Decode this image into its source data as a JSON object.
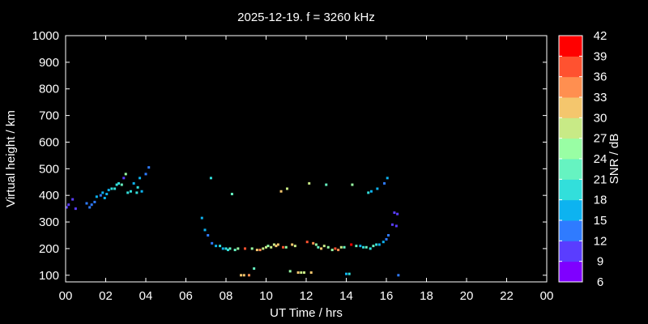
{
  "chart_data": {
    "type": "scatter",
    "title": "2025-12-19. f = 3260 kHz",
    "xlabel": "UT Time / hrs",
    "ylabel": "Virtual height / km",
    "colorbar_label": "SNR / dB",
    "xlim": [
      0,
      24
    ],
    "ylim": [
      75,
      1000
    ],
    "xticks": [
      "00",
      "02",
      "04",
      "06",
      "08",
      "10",
      "12",
      "14",
      "16",
      "18",
      "20",
      "22",
      "00"
    ],
    "yticks": [
      100,
      200,
      300,
      400,
      500,
      600,
      700,
      800,
      900,
      1000
    ],
    "snr_range": [
      6,
      42
    ],
    "snr_ticks": [
      6,
      9,
      12,
      15,
      18,
      21,
      24,
      27,
      30,
      33,
      36,
      39,
      42
    ],
    "background": "#000000",
    "foreground": "#ffffff",
    "colormap": [
      "#7f00ff",
      "#5a3dff",
      "#2f7bff",
      "#0db3f0",
      "#32dfdb",
      "#66f3c1",
      "#99fea4",
      "#c8ea86",
      "#f4c66d",
      "#ff8f50",
      "#ff5230",
      "#ff0000"
    ],
    "points": [
      {
        "x": 0.05,
        "y": 355,
        "snr": 10
      },
      {
        "x": 0.15,
        "y": 365,
        "snr": 10
      },
      {
        "x": 0.35,
        "y": 385,
        "snr": 10
      },
      {
        "x": 0.5,
        "y": 350,
        "snr": 10
      },
      {
        "x": 1.05,
        "y": 370,
        "snr": 13
      },
      {
        "x": 1.2,
        "y": 355,
        "snr": 14
      },
      {
        "x": 1.3,
        "y": 365,
        "snr": 13
      },
      {
        "x": 1.45,
        "y": 375,
        "snr": 13
      },
      {
        "x": 1.55,
        "y": 395,
        "snr": 15
      },
      {
        "x": 1.75,
        "y": 400,
        "snr": 14
      },
      {
        "x": 1.85,
        "y": 410,
        "snr": 16
      },
      {
        "x": 1.95,
        "y": 390,
        "snr": 17
      },
      {
        "x": 2.05,
        "y": 405,
        "snr": 16
      },
      {
        "x": 2.15,
        "y": 420,
        "snr": 17
      },
      {
        "x": 2.3,
        "y": 425,
        "snr": 18
      },
      {
        "x": 2.45,
        "y": 425,
        "snr": 20
      },
      {
        "x": 2.55,
        "y": 440,
        "snr": 19
      },
      {
        "x": 2.65,
        "y": 445,
        "snr": 18
      },
      {
        "x": 2.8,
        "y": 440,
        "snr": 21
      },
      {
        "x": 2.9,
        "y": 465,
        "snr": 11
      },
      {
        "x": 3.0,
        "y": 480,
        "snr": 24
      },
      {
        "x": 3.1,
        "y": 410,
        "snr": 19
      },
      {
        "x": 3.25,
        "y": 415,
        "snr": 20
      },
      {
        "x": 3.4,
        "y": 445,
        "snr": 17
      },
      {
        "x": 3.55,
        "y": 410,
        "snr": 18
      },
      {
        "x": 3.6,
        "y": 430,
        "snr": 19
      },
      {
        "x": 3.7,
        "y": 465,
        "snr": 15
      },
      {
        "x": 3.8,
        "y": 415,
        "snr": 17
      },
      {
        "x": 4.0,
        "y": 480,
        "snr": 13
      },
      {
        "x": 4.15,
        "y": 505,
        "snr": 14
      },
      {
        "x": 6.8,
        "y": 315,
        "snr": 16
      },
      {
        "x": 6.95,
        "y": 270,
        "snr": 15
      },
      {
        "x": 7.1,
        "y": 250,
        "snr": 14
      },
      {
        "x": 7.25,
        "y": 465,
        "snr": 18
      },
      {
        "x": 7.3,
        "y": 220,
        "snr": 14
      },
      {
        "x": 7.5,
        "y": 210,
        "snr": 15
      },
      {
        "x": 7.7,
        "y": 210,
        "snr": 18
      },
      {
        "x": 7.85,
        "y": 200,
        "snr": 17
      },
      {
        "x": 8.0,
        "y": 200,
        "snr": 18
      },
      {
        "x": 8.1,
        "y": 195,
        "snr": 20
      },
      {
        "x": 8.2,
        "y": 200,
        "snr": 21
      },
      {
        "x": 8.3,
        "y": 405,
        "snr": 22
      },
      {
        "x": 8.45,
        "y": 195,
        "snr": 23
      },
      {
        "x": 8.6,
        "y": 200,
        "snr": 24
      },
      {
        "x": 8.75,
        "y": 100,
        "snr": 31
      },
      {
        "x": 8.9,
        "y": 100,
        "snr": 30
      },
      {
        "x": 8.95,
        "y": 200,
        "snr": 38
      },
      {
        "x": 9.15,
        "y": 100,
        "snr": 33
      },
      {
        "x": 9.3,
        "y": 200,
        "snr": 24
      },
      {
        "x": 9.4,
        "y": 125,
        "snr": 22
      },
      {
        "x": 9.55,
        "y": 195,
        "snr": 30
      },
      {
        "x": 9.7,
        "y": 195,
        "snr": 33
      },
      {
        "x": 9.85,
        "y": 200,
        "snr": 29
      },
      {
        "x": 10.0,
        "y": 205,
        "snr": 27
      },
      {
        "x": 10.1,
        "y": 210,
        "snr": 26
      },
      {
        "x": 10.25,
        "y": 205,
        "snr": 28
      },
      {
        "x": 10.4,
        "y": 215,
        "snr": 29
      },
      {
        "x": 10.5,
        "y": 210,
        "snr": 32
      },
      {
        "x": 10.6,
        "y": 215,
        "snr": 30
      },
      {
        "x": 10.75,
        "y": 415,
        "snr": 31
      },
      {
        "x": 10.85,
        "y": 205,
        "snr": 37
      },
      {
        "x": 11.0,
        "y": 205,
        "snr": 26
      },
      {
        "x": 11.05,
        "y": 425,
        "snr": 29
      },
      {
        "x": 11.2,
        "y": 115,
        "snr": 26
      },
      {
        "x": 11.3,
        "y": 215,
        "snr": 32
      },
      {
        "x": 11.45,
        "y": 210,
        "snr": 29
      },
      {
        "x": 11.6,
        "y": 110,
        "snr": 30
      },
      {
        "x": 11.75,
        "y": 110,
        "snr": 28
      },
      {
        "x": 11.9,
        "y": 110,
        "snr": 29
      },
      {
        "x": 12.05,
        "y": 225,
        "snr": 36
      },
      {
        "x": 12.15,
        "y": 445,
        "snr": 27
      },
      {
        "x": 12.25,
        "y": 110,
        "snr": 30
      },
      {
        "x": 12.35,
        "y": 220,
        "snr": 33
      },
      {
        "x": 12.5,
        "y": 215,
        "snr": 24
      },
      {
        "x": 12.6,
        "y": 205,
        "snr": 22
      },
      {
        "x": 12.75,
        "y": 200,
        "snr": 30
      },
      {
        "x": 12.9,
        "y": 210,
        "snr": 27
      },
      {
        "x": 13.0,
        "y": 440,
        "snr": 22
      },
      {
        "x": 13.1,
        "y": 205,
        "snr": 26
      },
      {
        "x": 13.3,
        "y": 195,
        "snr": 24
      },
      {
        "x": 13.45,
        "y": 200,
        "snr": 37
      },
      {
        "x": 13.6,
        "y": 195,
        "snr": 33
      },
      {
        "x": 13.75,
        "y": 205,
        "snr": 28
      },
      {
        "x": 13.9,
        "y": 205,
        "snr": 21
      },
      {
        "x": 14.0,
        "y": 105,
        "snr": 15
      },
      {
        "x": 14.15,
        "y": 105,
        "snr": 18
      },
      {
        "x": 14.25,
        "y": 215,
        "snr": 39
      },
      {
        "x": 14.3,
        "y": 440,
        "snr": 25
      },
      {
        "x": 14.5,
        "y": 210,
        "snr": 22
      },
      {
        "x": 14.7,
        "y": 210,
        "snr": 17
      },
      {
        "x": 14.85,
        "y": 205,
        "snr": 19
      },
      {
        "x": 15.0,
        "y": 205,
        "snr": 21
      },
      {
        "x": 15.1,
        "y": 410,
        "snr": 19
      },
      {
        "x": 15.25,
        "y": 415,
        "snr": 16
      },
      {
        "x": 15.2,
        "y": 200,
        "snr": 20
      },
      {
        "x": 15.35,
        "y": 210,
        "snr": 22
      },
      {
        "x": 15.5,
        "y": 215,
        "snr": 19
      },
      {
        "x": 15.55,
        "y": 425,
        "snr": 15
      },
      {
        "x": 15.65,
        "y": 215,
        "snr": 17
      },
      {
        "x": 15.85,
        "y": 225,
        "snr": 15
      },
      {
        "x": 15.9,
        "y": 445,
        "snr": 14
      },
      {
        "x": 16.0,
        "y": 235,
        "snr": 13
      },
      {
        "x": 16.05,
        "y": 465,
        "snr": 17
      },
      {
        "x": 16.1,
        "y": 250,
        "snr": 12
      },
      {
        "x": 16.3,
        "y": 290,
        "snr": 11
      },
      {
        "x": 16.4,
        "y": 335,
        "snr": 10
      },
      {
        "x": 16.5,
        "y": 285,
        "snr": 10
      },
      {
        "x": 16.55,
        "y": 330,
        "snr": 10
      },
      {
        "x": 16.6,
        "y": 100,
        "snr": 12
      }
    ]
  }
}
